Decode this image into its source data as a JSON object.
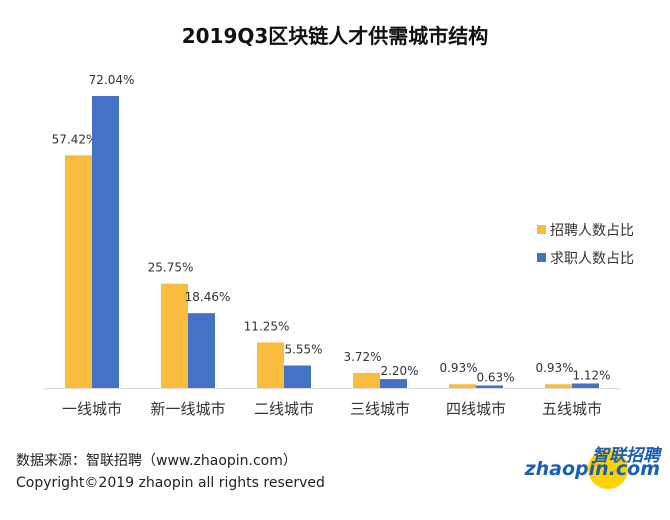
{
  "chart_data": {
    "type": "bar",
    "title": "2019Q3区块链人才供需城市结构",
    "categories": [
      "一线城市",
      "新一线城市",
      "二线城市",
      "三线城市",
      "四线城市",
      "五线城市"
    ],
    "series": [
      {
        "name": "招聘人数占比",
        "color": "#F8BC3E",
        "values": [
          57.42,
          25.75,
          11.25,
          3.72,
          0.93,
          0.93
        ],
        "labels": [
          "57.42%",
          "25.75%",
          "11.25%",
          "3.72%",
          "0.93%",
          "0.93%"
        ]
      },
      {
        "name": "求职人数占比",
        "color": "#4472C4",
        "values": [
          72.04,
          18.46,
          5.55,
          2.2,
          0.63,
          1.12
        ],
        "labels": [
          "72.04%",
          "18.46%",
          "5.55%",
          "2.20%",
          "0.63%",
          "1.12%"
        ]
      }
    ],
    "ylim": [
      0,
      80
    ],
    "grid": false,
    "legend": "right"
  },
  "footer": {
    "source": "数据来源：智联招聘（www.zhaopin.com）",
    "copyright": "Copyright©2019 zhaopin all rights reserved"
  },
  "logo": {
    "cn": "智联招聘",
    "en": "zhaopin.com"
  }
}
